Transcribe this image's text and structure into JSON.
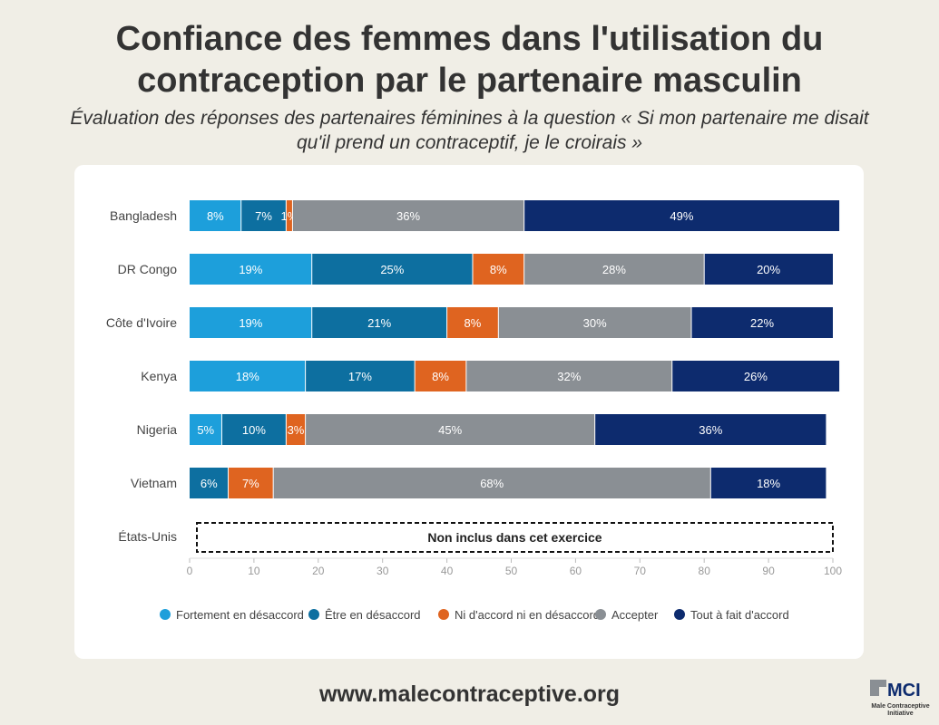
{
  "header": {
    "title_line1": "Confiance des femmes dans l'utilisation du",
    "title_line2": "contraception par le partenaire masculin",
    "subtitle": "Évaluation des réponses des partenaires féminines à la question « Si mon partenaire me disait qu'il prend un contraceptif, je le croirais »"
  },
  "chart_data": {
    "type": "bar",
    "orientation": "horizontal-stacked",
    "categories": [
      "Bangladesh",
      "DR Congo",
      "Côte d'Ivoire",
      "Kenya",
      "Nigeria",
      "Vietnam",
      "États-Unis"
    ],
    "series": [
      {
        "name": "Fortement en désaccord",
        "color": "#1d9fdb",
        "values": [
          8,
          19,
          19,
          18,
          5,
          0,
          null
        ]
      },
      {
        "name": "Être en désaccord",
        "color": "#0d6fa0",
        "values": [
          7,
          25,
          21,
          17,
          10,
          6,
          null
        ]
      },
      {
        "name": "Ni d'accord ni en désaccord",
        "color": "#df6420",
        "values": [
          1,
          8,
          8,
          8,
          3,
          7,
          null
        ]
      },
      {
        "name": "Accepter",
        "color": "#8a8f94",
        "values": [
          36,
          28,
          30,
          32,
          45,
          68,
          null
        ]
      },
      {
        "name": "Tout à fait d'accord",
        "color": "#0d2b6e",
        "values": [
          49,
          20,
          22,
          26,
          36,
          18,
          null
        ]
      }
    ],
    "not_included_label": "Non inclus dans cet exercice",
    "xlim": [
      0,
      100
    ],
    "xticks": [
      0,
      10,
      20,
      30,
      40,
      50,
      60,
      70,
      80,
      90,
      100
    ],
    "legend_position": "bottom",
    "grid": false
  },
  "footer": {
    "url": "www.malecontraceptive.org",
    "logo_text": "MCI",
    "logo_subtext": "Male Contraceptive Initiative"
  }
}
